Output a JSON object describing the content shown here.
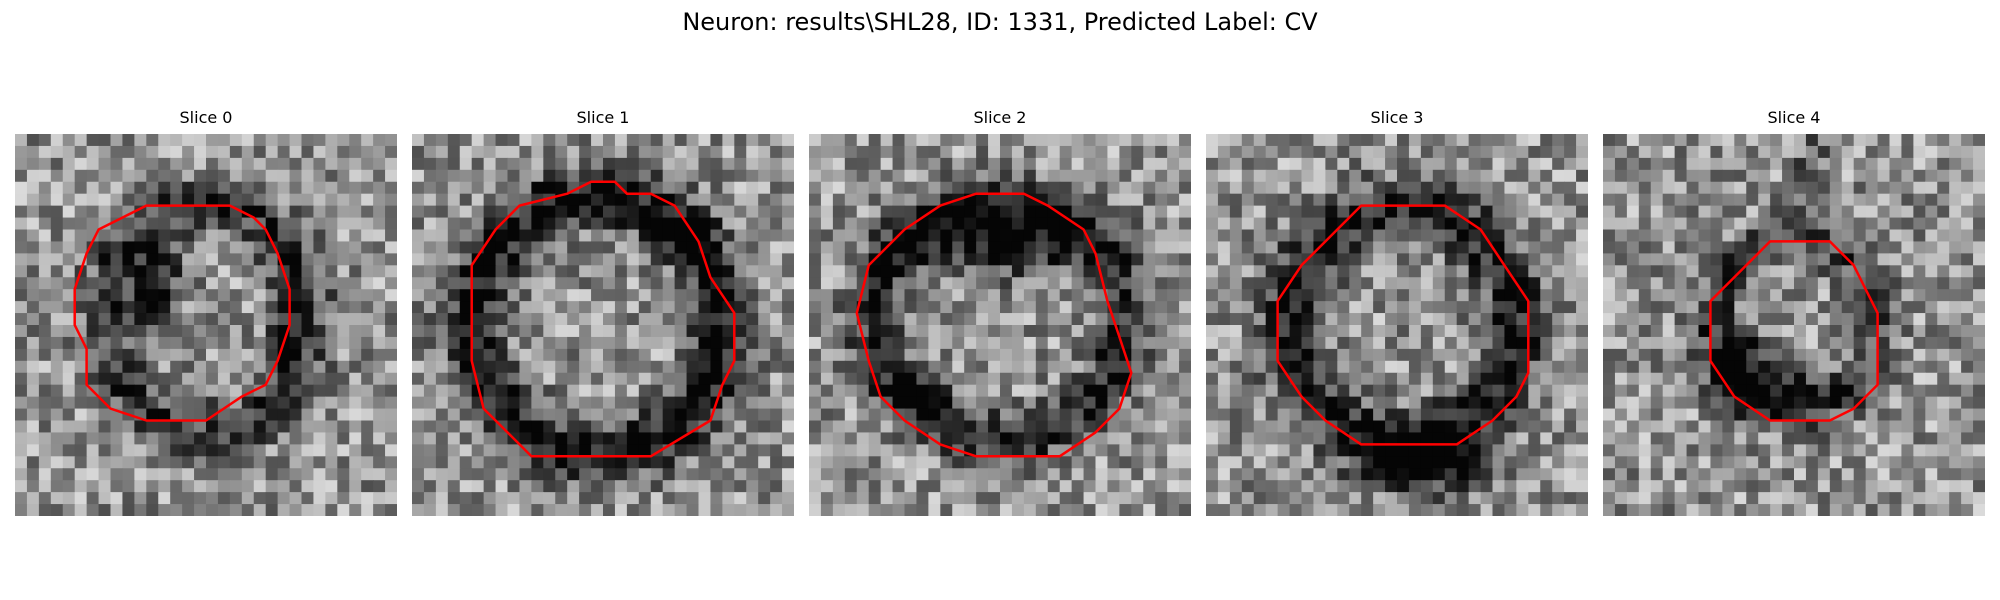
{
  "figure": {
    "title": "Neuron: results\\SHL28, ID: 1331, Predicted Label: CV"
  },
  "colors": {
    "contour": "#ff0000",
    "background": "#ffffff"
  },
  "slices": [
    {
      "title": "Slice 0",
      "grid_size": 32,
      "dark_features": [
        {
          "center": [
            11.8,
            13.0
          ],
          "radii": [
            2.2,
            4.6
          ],
          "strength": 0.6
        },
        {
          "center": [
            16.0,
            15.5
          ],
          "radii": [
            8.6,
            9.4
          ],
          "ring_width": 1.6,
          "strength": 0.35
        },
        {
          "center": [
            22.5,
            15.0
          ],
          "radii": [
            1.6,
            5.5
          ],
          "strength": 0.35
        }
      ],
      "contour": [
        [
          11,
          6
        ],
        [
          18,
          6
        ],
        [
          20,
          7
        ],
        [
          21,
          8
        ],
        [
          22,
          10
        ],
        [
          23,
          13
        ],
        [
          23,
          16
        ],
        [
          22,
          19
        ],
        [
          21,
          21
        ],
        [
          19,
          22
        ],
        [
          16,
          24
        ],
        [
          11,
          24
        ],
        [
          8,
          23
        ],
        [
          6,
          21
        ],
        [
          6,
          18
        ],
        [
          5,
          16
        ],
        [
          5,
          13
        ],
        [
          6,
          10
        ],
        [
          7,
          8
        ],
        [
          9,
          7
        ]
      ]
    },
    {
      "title": "Slice 1",
      "grid_size": 32,
      "dark_features": [
        {
          "center": [
            15.5,
            16.0
          ],
          "radii": [
            10.5,
            10.8
          ],
          "ring_width": 1.8,
          "strength": 0.55
        },
        {
          "center": [
            23.5,
            8.5
          ],
          "radii": [
            2.0,
            2.0
          ],
          "strength": 0.45
        }
      ],
      "contour": [
        [
          13,
          5
        ],
        [
          15,
          4
        ],
        [
          17,
          4
        ],
        [
          18,
          5
        ],
        [
          20,
          5
        ],
        [
          22,
          6
        ],
        [
          24,
          9
        ],
        [
          25,
          12
        ],
        [
          27,
          15
        ],
        [
          27,
          19
        ],
        [
          26,
          21
        ],
        [
          25,
          24
        ],
        [
          20,
          27
        ],
        [
          10,
          27
        ],
        [
          8,
          25
        ],
        [
          6,
          23
        ],
        [
          5,
          19
        ],
        [
          5,
          11
        ],
        [
          7,
          8
        ],
        [
          9,
          6
        ]
      ]
    },
    {
      "title": "Slice 2",
      "grid_size": 32,
      "dark_features": [
        {
          "center": [
            16.0,
            9.0
          ],
          "radii": [
            7.5,
            3.2
          ],
          "strength": 0.6
        },
        {
          "center": [
            16.0,
            15.5
          ],
          "radii": [
            10.5,
            10.0
          ],
          "ring_width": 1.6,
          "strength": 0.45
        },
        {
          "center": [
            9.5,
            21.5
          ],
          "radii": [
            3.0,
            2.0
          ],
          "strength": 0.3
        }
      ],
      "contour": [
        [
          11,
          6
        ],
        [
          14,
          5
        ],
        [
          18,
          5
        ],
        [
          20,
          6
        ],
        [
          23,
          8
        ],
        [
          24,
          10
        ],
        [
          25,
          14
        ],
        [
          26,
          17
        ],
        [
          27,
          20
        ],
        [
          26,
          23
        ],
        [
          24,
          25
        ],
        [
          21,
          27
        ],
        [
          14,
          27
        ],
        [
          11,
          26
        ],
        [
          8,
          24
        ],
        [
          6,
          22
        ],
        [
          5,
          19
        ],
        [
          4,
          15
        ],
        [
          5,
          11
        ],
        [
          8,
          8
        ]
      ]
    },
    {
      "title": "Slice 3",
      "grid_size": 32,
      "dark_features": [
        {
          "center": [
            16.5,
            16.0
          ],
          "radii": [
            9.5,
            9.6
          ],
          "ring_width": 1.8,
          "strength": 0.5
        },
        {
          "center": [
            18.0,
            27.5
          ],
          "radii": [
            5.5,
            2.8
          ],
          "strength": 0.7
        }
      ],
      "contour": [
        [
          13,
          6
        ],
        [
          20,
          6
        ],
        [
          23,
          8
        ],
        [
          25,
          11
        ],
        [
          27,
          14
        ],
        [
          27,
          20
        ],
        [
          26,
          22
        ],
        [
          24,
          24
        ],
        [
          21,
          26
        ],
        [
          13,
          26
        ],
        [
          10,
          24
        ],
        [
          8,
          22
        ],
        [
          6,
          19
        ],
        [
          6,
          14
        ],
        [
          8,
          11
        ],
        [
          11,
          8
        ]
      ]
    },
    {
      "title": "Slice 4",
      "grid_size": 32,
      "dark_features": [
        {
          "center": [
            11.5,
            19.5
          ],
          "radii": [
            2.8,
            3.6
          ],
          "strength": 0.55
        },
        {
          "center": [
            16.5,
            21.5
          ],
          "radii": [
            4.5,
            1.8
          ],
          "strength": 0.4
        },
        {
          "center": [
            16.0,
            16.0
          ],
          "radii": [
            6.8,
            7.2
          ],
          "ring_width": 1.4,
          "strength": 0.3
        },
        {
          "center": [
            17.5,
            3.5
          ],
          "radii": [
            1.5,
            3.5
          ],
          "strength": 0.35
        }
      ],
      "contour": [
        [
          14,
          9
        ],
        [
          19,
          9
        ],
        [
          21,
          11
        ],
        [
          22,
          13
        ],
        [
          23,
          15
        ],
        [
          23,
          21
        ],
        [
          21,
          23
        ],
        [
          19,
          24
        ],
        [
          14,
          24
        ],
        [
          11,
          22
        ],
        [
          9,
          19
        ],
        [
          9,
          14
        ],
        [
          11,
          12
        ],
        [
          13,
          10
        ]
      ]
    }
  ]
}
